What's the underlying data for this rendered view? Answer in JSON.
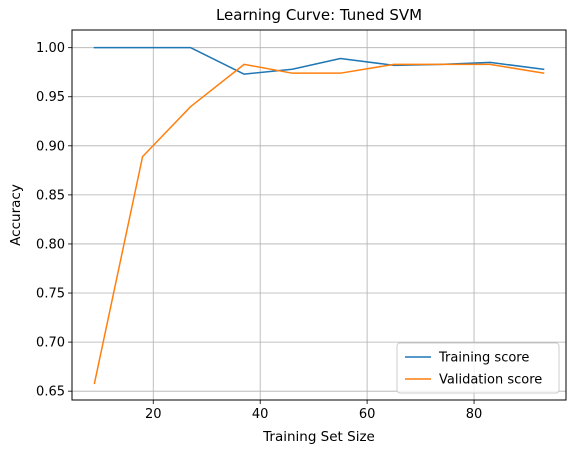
{
  "chart_data": {
    "type": "line",
    "title": "Learning Curve: Tuned SVM",
    "xlabel": "Training Set Size",
    "ylabel": "Accuracy",
    "xlim": [
      4.8,
      97.2
    ],
    "ylim": [
      0.641,
      1.018
    ],
    "grid": true,
    "legend_position": "lower right",
    "x_ticks": [
      20,
      40,
      60,
      80
    ],
    "x_tick_labels": [
      "20",
      "40",
      "60",
      "80"
    ],
    "y_ticks": [
      0.65,
      0.7,
      0.75,
      0.8,
      0.85,
      0.9,
      0.95,
      1.0
    ],
    "y_tick_labels": [
      "0.65",
      "0.70",
      "0.75",
      "0.80",
      "0.85",
      "0.90",
      "0.95",
      "1.00"
    ],
    "x": [
      9,
      18,
      27,
      37,
      46,
      55,
      65,
      74,
      83,
      93
    ],
    "series": [
      {
        "name": "Training score",
        "color": "#1f77b4",
        "values": [
          1.0,
          1.0,
          1.0,
          0.973,
          0.978,
          0.989,
          0.982,
          0.983,
          0.985,
          0.978
        ]
      },
      {
        "name": "Validation score",
        "color": "#ff7f0e",
        "values": [
          0.658,
          0.889,
          0.94,
          0.983,
          0.974,
          0.974,
          0.983,
          0.983,
          0.983,
          0.974
        ]
      }
    ]
  }
}
